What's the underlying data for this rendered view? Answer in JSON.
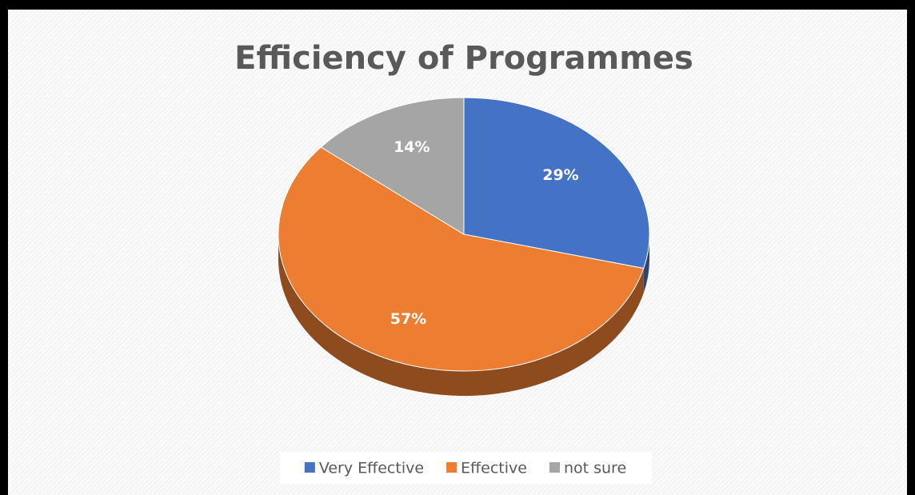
{
  "chart_data": {
    "type": "pie",
    "title": "Efficiency of Programmes",
    "categories": [
      "Very Effective",
      "Effective",
      "not sure"
    ],
    "values": [
      29,
      57,
      14
    ],
    "value_labels": [
      "29%",
      "57%",
      "14%"
    ],
    "colors": [
      "#4472c4",
      "#ed7d31",
      "#a5a5a5"
    ],
    "legend": "bottom"
  }
}
